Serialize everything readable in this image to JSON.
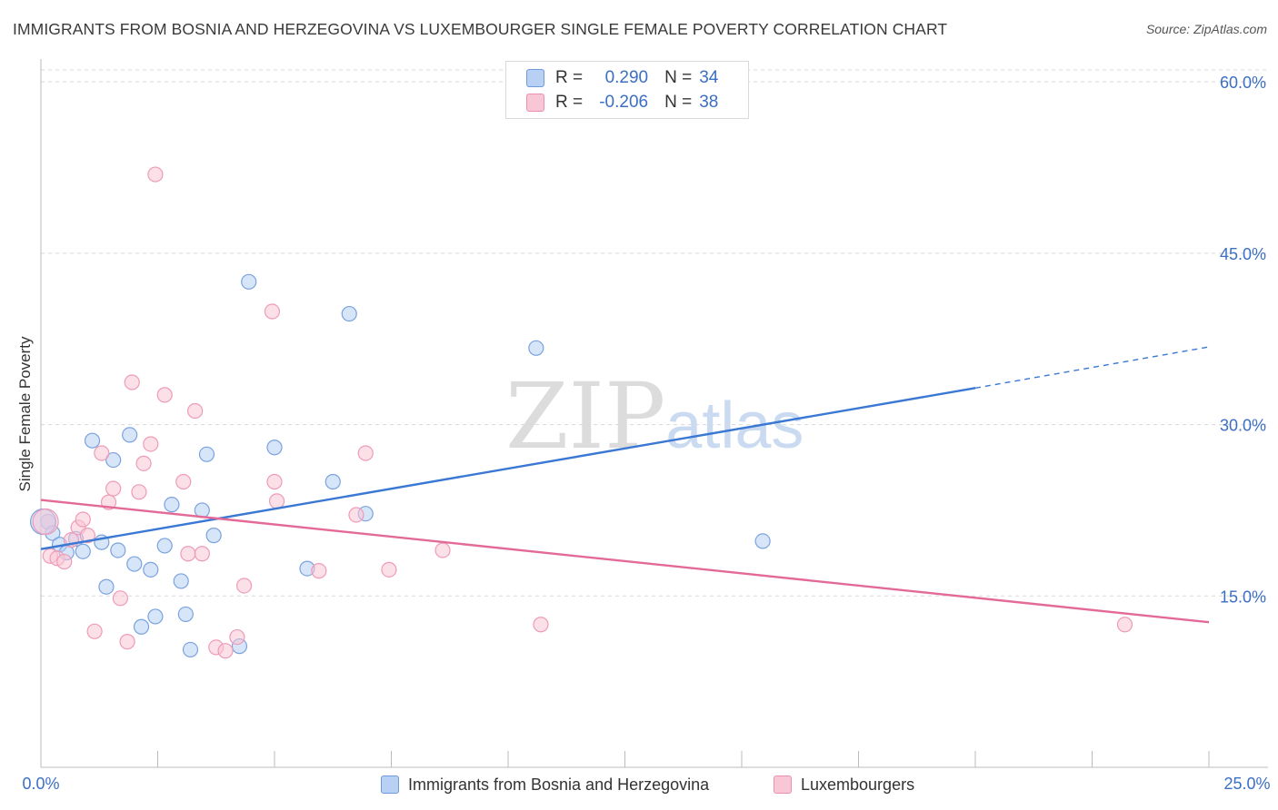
{
  "title": "IMMIGRANTS FROM BOSNIA AND HERZEGOVINA VS LUXEMBOURGER SINGLE FEMALE POVERTY CORRELATION CHART",
  "source": "Source: ZipAtlas.com",
  "watermark": {
    "zip": "ZIP",
    "atlas": "atlas"
  },
  "legend": {
    "r_label": "R =",
    "n_label": "N =",
    "rows": [
      {
        "r": "0.290",
        "n": "34",
        "fill": "#b7d0f3",
        "stroke": "#6e9ae0"
      },
      {
        "r": "-0.206",
        "n": "38",
        "fill": "#f9c6d6",
        "stroke": "#ee8fae"
      }
    ]
  },
  "bottom_legend": [
    "Immigrants from Bosnia and Herzegovina",
    "Luxembourgers"
  ],
  "colors": {
    "blue": "#3a78d4",
    "pink": "#e36a97",
    "blue_fill": "#b7d0f3",
    "pink_fill": "#f9c6d6",
    "tick_text": "#3b6fc4",
    "grid": "#d8d8d8"
  },
  "chart_data": {
    "type": "scatter",
    "xlabel": "",
    "ylabel": "Single Female Poverty",
    "xlim": [
      0,
      25
    ],
    "ylim": [
      0,
      62
    ],
    "x_tick_labels": [
      "0.0%",
      "25.0%"
    ],
    "y_ticks": [
      15,
      30,
      45,
      60
    ],
    "y_tick_labels": [
      "15.0%",
      "30.0%",
      "45.0%",
      "60.0%"
    ],
    "series": [
      {
        "name": "Immigrants from Bosnia and Herzegovina",
        "color": "blue",
        "points": [
          [
            0.15,
            21.5
          ],
          [
            0.25,
            20.5
          ],
          [
            0.4,
            19.5
          ],
          [
            0.55,
            18.8
          ],
          [
            0.75,
            20.0
          ],
          [
            0.9,
            18.9
          ],
          [
            1.1,
            28.6
          ],
          [
            1.3,
            19.7
          ],
          [
            1.4,
            15.8
          ],
          [
            1.55,
            26.9
          ],
          [
            1.65,
            19.0
          ],
          [
            1.9,
            29.1
          ],
          [
            2.0,
            17.8
          ],
          [
            2.15,
            12.3
          ],
          [
            2.35,
            17.3
          ],
          [
            2.45,
            13.2
          ],
          [
            2.65,
            19.4
          ],
          [
            2.8,
            23.0
          ],
          [
            3.0,
            16.3
          ],
          [
            3.1,
            13.4
          ],
          [
            3.2,
            10.3
          ],
          [
            3.45,
            22.5
          ],
          [
            3.55,
            27.4
          ],
          [
            3.7,
            20.3
          ],
          [
            4.25,
            10.6
          ],
          [
            4.45,
            42.5
          ],
          [
            5.0,
            28.0
          ],
          [
            5.7,
            17.4
          ],
          [
            6.25,
            25.0
          ],
          [
            6.6,
            39.7
          ],
          [
            6.95,
            22.2
          ],
          [
            10.6,
            36.7
          ],
          [
            15.45,
            19.8
          ],
          [
            0.05,
            21.5
          ]
        ],
        "trend": {
          "x": [
            0,
            20
          ],
          "y": [
            19.1,
            33.2
          ],
          "dashed_to": [
            25,
            36.8
          ]
        }
      },
      {
        "name": "Luxembourgers",
        "color": "pink",
        "points": [
          [
            0.2,
            18.5
          ],
          [
            0.35,
            18.3
          ],
          [
            0.5,
            18.0
          ],
          [
            0.65,
            19.9
          ],
          [
            0.8,
            21.0
          ],
          [
            0.9,
            21.7
          ],
          [
            1.0,
            20.3
          ],
          [
            1.15,
            11.9
          ],
          [
            1.3,
            27.5
          ],
          [
            1.45,
            23.2
          ],
          [
            1.55,
            24.4
          ],
          [
            1.7,
            14.8
          ],
          [
            1.85,
            11.0
          ],
          [
            1.95,
            33.7
          ],
          [
            2.1,
            24.1
          ],
          [
            2.2,
            26.6
          ],
          [
            2.35,
            28.3
          ],
          [
            2.45,
            51.9
          ],
          [
            2.65,
            32.6
          ],
          [
            3.05,
            25.0
          ],
          [
            3.15,
            18.7
          ],
          [
            3.3,
            31.2
          ],
          [
            3.45,
            18.7
          ],
          [
            3.75,
            10.5
          ],
          [
            3.95,
            10.2
          ],
          [
            4.2,
            11.4
          ],
          [
            4.35,
            15.9
          ],
          [
            4.95,
            39.9
          ],
          [
            5.0,
            25.0
          ],
          [
            5.05,
            23.3
          ],
          [
            5.95,
            17.2
          ],
          [
            6.75,
            22.1
          ],
          [
            6.95,
            27.5
          ],
          [
            7.45,
            17.3
          ],
          [
            8.6,
            19.0
          ],
          [
            10.7,
            12.5
          ],
          [
            23.2,
            12.5
          ],
          [
            0.1,
            21.5
          ]
        ],
        "trend": {
          "x": [
            0,
            25
          ],
          "y": [
            23.4,
            12.7
          ]
        }
      }
    ]
  }
}
